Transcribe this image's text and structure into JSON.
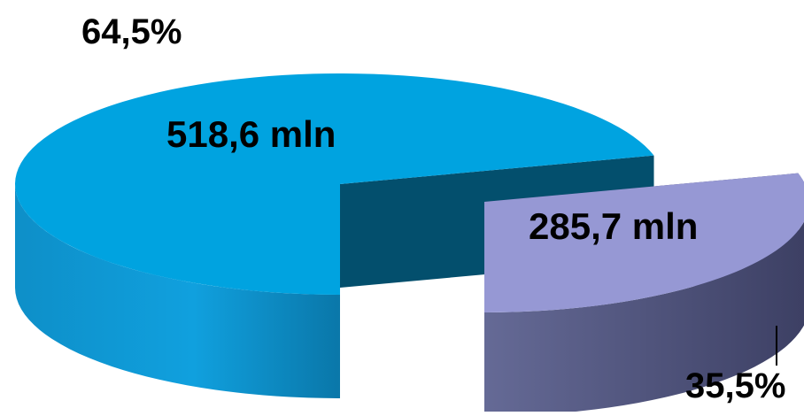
{
  "chart_data": {
    "type": "pie",
    "style": "3d-exploded",
    "slices": [
      {
        "value": 518.6,
        "value_label": "518,6 mln",
        "percent": 64.5,
        "percent_label": "64,5%",
        "color_top": "#00a3e0",
        "color_side": "#0b7db2",
        "color_cut": "#034f6d"
      },
      {
        "value": 285.7,
        "value_label": "285,7 mln",
        "percent": 35.5,
        "percent_label": "35,5%",
        "color_top": "#9698d4",
        "color_side": "#4a4f78",
        "color_cut": "#3d3d63"
      }
    ],
    "legend": "none"
  }
}
